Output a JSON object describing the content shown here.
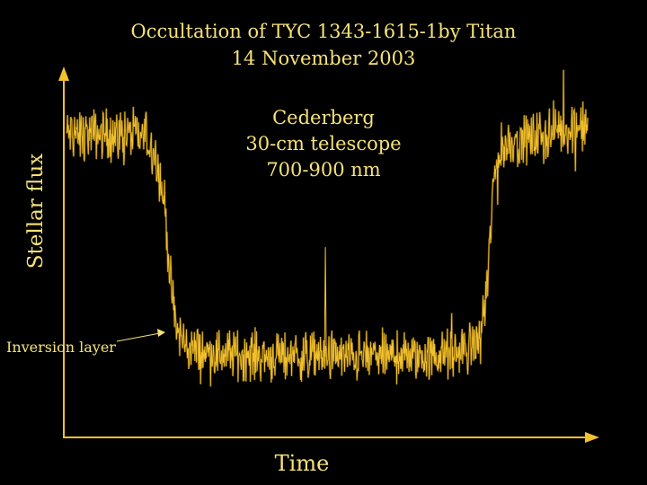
{
  "colors": {
    "background": "#000000",
    "text": "#f6e27a",
    "curve": "#f2c12e",
    "axis": "#f2c12e"
  },
  "chart_data": {
    "type": "line",
    "title": "Occultation of TYC 1343-1615-1by Titan",
    "subtitle": "14 November 2003",
    "annotations": [
      "Cederberg",
      "30-cm telescope",
      "700-900 nm"
    ],
    "callout": "Inversion layer",
    "xlabel": "Time",
    "ylabel": "Stellar flux",
    "grid": false,
    "legend": "none",
    "ticks": "none",
    "xlim": [
      0,
      100
    ],
    "ylim": [
      0,
      100
    ],
    "series": [
      {
        "x": [
          0,
          5,
          10,
          15,
          17,
          18,
          19,
          19.5,
          20,
          21,
          23,
          26,
          30,
          40,
          50,
          55,
          60,
          70,
          75,
          79,
          80,
          81,
          81.5,
          82,
          83,
          85,
          90,
          95,
          100
        ],
        "values": [
          85,
          85,
          85,
          84,
          80,
          72,
          63,
          52,
          42,
          30,
          25,
          23,
          23,
          22,
          22,
          22,
          22,
          22,
          23,
          26,
          33,
          48,
          60,
          72,
          79,
          83,
          84,
          86,
          87
        ]
      }
    ],
    "noise_amplitude": 6,
    "spike_x": 49.5,
    "spike_y": 53
  }
}
